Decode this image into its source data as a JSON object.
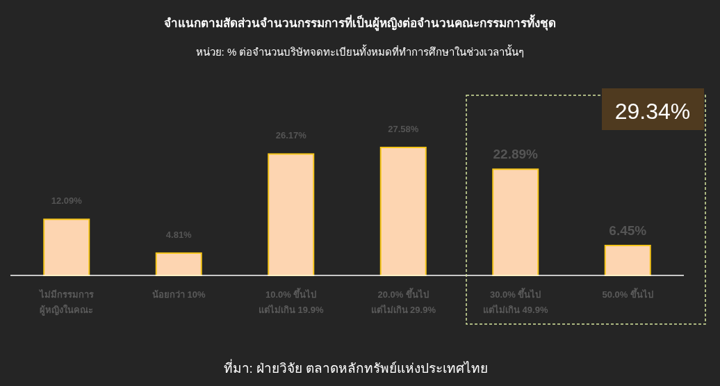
{
  "chart_data": {
    "type": "bar",
    "title": "จำแนกตามสัดส่วนจำนวนกรรมการที่เป็นผู้หญิงต่อจำนวนคณะกรรมการทั้งชุด",
    "subtitle": "หน่วย: % ต่อจำนวนบริษัทจดทะเบียนทั้งหมดที่ทำการศึกษาในช่วงเวลานั้นๆ",
    "categories": [
      "ไม่มีกรรมการ\nผู้หญิงในคณะ",
      "น้อยกว่า 10%",
      "10.0% ขึ้นไป\nแต่ไม่เกิน 19.9%",
      "20.0% ขึ้นไป\nแต่ไม่เกิน 29.9%",
      "30.0% ขึ้นไป\nแต่ไม่เกิน 49.9%",
      "50.0% ขึ้นไป"
    ],
    "values": [
      12.09,
      4.81,
      26.17,
      27.58,
      22.89,
      6.45
    ],
    "value_labels": [
      "12.09%",
      "4.81%",
      "26.17%",
      "27.58%",
      "22.89%",
      "6.45%"
    ],
    "color": "#fdd5b1",
    "annotations": [
      "29.34%",
      "ที่มา: ฝ่ายวิจัย ตลาดหลักทรัพย์แห่งประเทศไทย"
    ]
  }
}
